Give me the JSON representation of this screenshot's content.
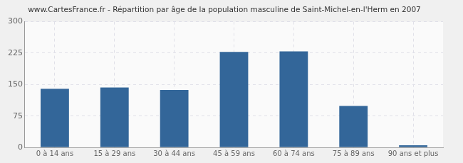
{
  "chart_data": {
    "type": "bar",
    "title": "www.CartesFrance.fr - Répartition par âge de la population masculine de Saint-Michel-en-l'Herm en 2007",
    "categories": [
      "0 à 14 ans",
      "15 à 29 ans",
      "30 à 44 ans",
      "45 à 59 ans",
      "60 à 74 ans",
      "75 à 89 ans",
      "90 ans et plus"
    ],
    "values": [
      140,
      143,
      137,
      228,
      229,
      99,
      5
    ],
    "color": "#336699",
    "ylim": [
      0,
      300
    ],
    "yticks": [
      0,
      75,
      150,
      225,
      300
    ],
    "grid": true
  }
}
